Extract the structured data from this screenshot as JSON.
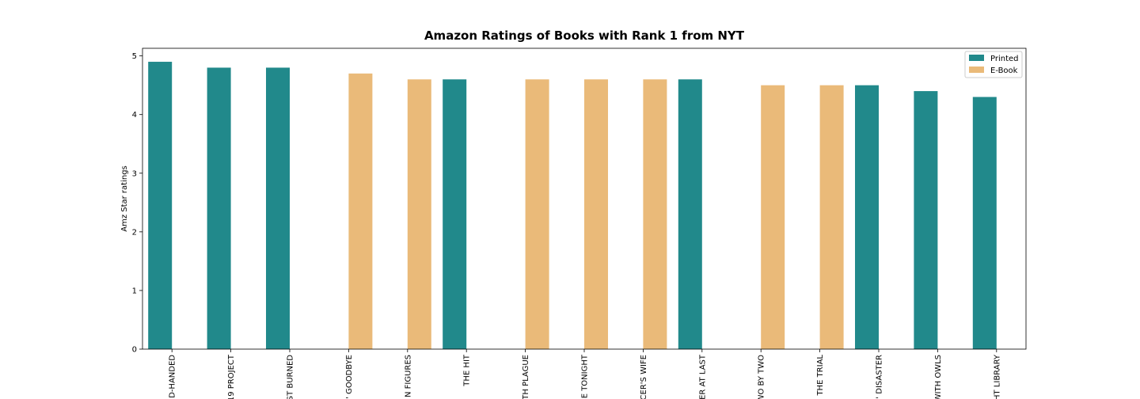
{
  "chart_data": {
    "type": "bar",
    "title": "Amazon Ratings of Books with Rank 1 from NYT",
    "xlabel": "",
    "ylabel": "Amz Star ratings",
    "ylim": [
      0,
      5.13
    ],
    "yticks": [
      0,
      1,
      2,
      3,
      4,
      5
    ],
    "grid": false,
    "legend_position": "top-right",
    "categories": [
      "D-HANDED",
      "19 PROJECT",
      "ST BURNED",
      "' GOODBYE",
      "N FIGURES",
      "THE HIT",
      "TH PLAGUE",
      "E TONIGHT",
      "CER'S WIFE",
      "ER AT LAST",
      "WO BY TWO",
      "THE TRIAL",
      "' DISASTER",
      "WITH OWLS",
      "HT LIBRARY"
    ],
    "series": [
      {
        "name": "Printed",
        "color": "#21898b",
        "values": [
          4.9,
          4.8,
          4.8,
          null,
          null,
          4.6,
          null,
          null,
          null,
          4.6,
          null,
          null,
          4.5,
          4.4,
          4.3
        ]
      },
      {
        "name": "E-Book",
        "color": "#eaba79",
        "values": [
          null,
          null,
          null,
          4.7,
          4.6,
          null,
          4.6,
          4.6,
          4.6,
          null,
          4.5,
          4.5,
          null,
          null,
          null
        ]
      }
    ]
  }
}
